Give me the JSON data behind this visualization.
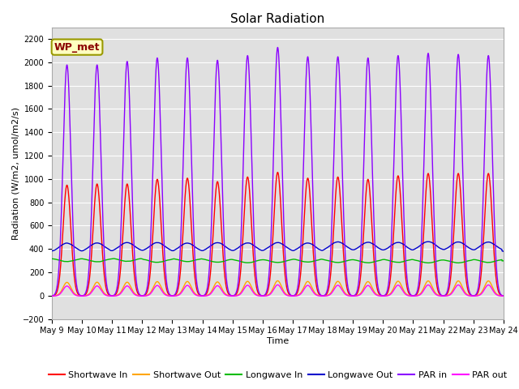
{
  "title": "Solar Radiation",
  "xlabel": "Time",
  "ylabel": "Radiation (W/m2, umol/m2/s)",
  "ylim": [
    -200,
    2300
  ],
  "n_days": 15,
  "x_tick_labels": [
    "May 9",
    "May 10",
    "May 11",
    "May 12",
    "May 13",
    "May 14",
    "May 15",
    "May 16",
    "May 17",
    "May 18",
    "May 19",
    "May 20",
    "May 21",
    "May 22",
    "May 23",
    "May 24"
  ],
  "annotation_text": "WP_met",
  "annotation_box_facecolor": "#FFFFC0",
  "annotation_box_edgecolor": "#999900",
  "bg_color": "#E0E0E0",
  "grid_color": "white",
  "series": {
    "shortwave_in": {
      "color": "#FF0000",
      "label": "Shortwave In"
    },
    "shortwave_out": {
      "color": "#FFA500",
      "label": "Shortwave Out"
    },
    "longwave_in": {
      "color": "#00BB00",
      "label": "Longwave In"
    },
    "longwave_out": {
      "color": "#0000CC",
      "label": "Longwave Out"
    },
    "par_in": {
      "color": "#8B00FF",
      "label": "PAR in"
    },
    "par_out": {
      "color": "#FF00FF",
      "label": "PAR out"
    }
  },
  "peak_sw": [
    950,
    960,
    960,
    1000,
    1010,
    980,
    1020,
    1060,
    1010,
    1020,
    1000,
    1030,
    1050,
    1050,
    1050
  ],
  "peak_par": [
    1980,
    1980,
    2010,
    2040,
    2040,
    2020,
    2060,
    2130,
    2050,
    2050,
    2040,
    2060,
    2080,
    2070,
    2060
  ],
  "lw_in_base": 320,
  "lw_out_base": 370,
  "title_fontsize": 11,
  "axis_label_fontsize": 8,
  "tick_fontsize": 7,
  "legend_fontsize": 8,
  "line_width": 1.0
}
